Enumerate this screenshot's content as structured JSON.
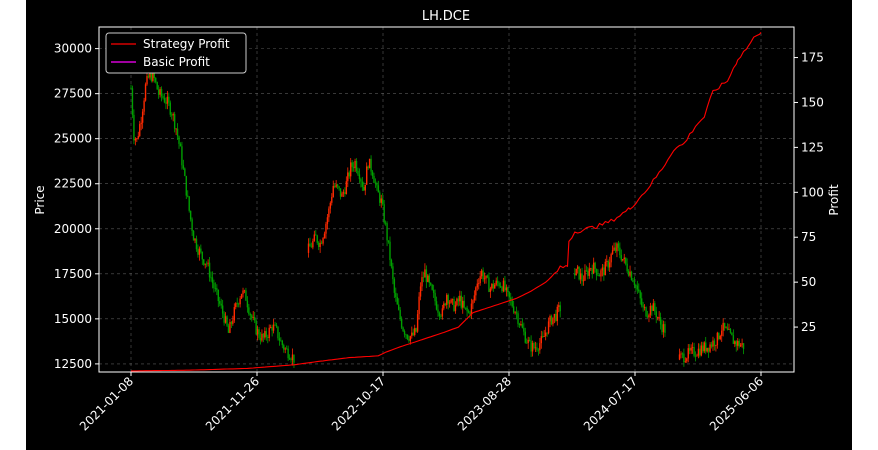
{
  "chart_data": {
    "type": "line",
    "title": "LH.DCE",
    "ylabel": "Price",
    "y2label": "Profit",
    "ylim": [
      12050,
      31200
    ],
    "y2lim": [
      0,
      192
    ],
    "yticks": [
      12500,
      15000,
      17500,
      20000,
      22500,
      25000,
      27500,
      30000
    ],
    "y2ticks": [
      25,
      50,
      75,
      100,
      125,
      150,
      175
    ],
    "xticks": [
      "2021-01-08",
      "2021-11-26",
      "2022-10-17",
      "2023-08-28",
      "2024-07-17",
      "2025-06-06"
    ],
    "grid": true,
    "legend_position": "top-left",
    "colors": {
      "background": "#000000",
      "text": "#ffffff",
      "candle_up": "#ff2a00",
      "candle_down": "#00a000",
      "strategy_profit": "#ff0000",
      "basic_profit": "#ff00ff",
      "grid": "#808080"
    },
    "legend": [
      {
        "label": "Strategy Profit",
        "color": "#ff0000"
      },
      {
        "label": "Basic Profit",
        "color": "#ff00ff"
      }
    ],
    "price_series": {
      "name": "Price",
      "points": [
        [
          0,
          27800
        ],
        [
          2,
          25200
        ],
        [
          4,
          24900
        ],
        [
          7,
          26200
        ],
        [
          10,
          27900
        ],
        [
          13,
          28600
        ],
        [
          16,
          28300
        ],
        [
          19,
          27500
        ],
        [
          22,
          27300
        ],
        [
          25,
          27000
        ],
        [
          28,
          26500
        ],
        [
          31,
          25600
        ],
        [
          34,
          24300
        ],
        [
          37,
          22700
        ],
        [
          40,
          21000
        ],
        [
          43,
          19600
        ],
        [
          46,
          18900
        ],
        [
          49,
          18400
        ],
        [
          52,
          18100
        ],
        [
          55,
          17300
        ],
        [
          58,
          16500
        ],
        [
          61,
          15800
        ],
        [
          64,
          15100
        ],
        [
          67,
          14200
        ],
        [
          70,
          15100
        ],
        [
          73,
          15900
        ],
        [
          76,
          16500
        ],
        [
          79,
          16200
        ],
        [
          82,
          15300
        ],
        [
          85,
          14600
        ],
        [
          88,
          14100
        ],
        [
          91,
          13900
        ],
        [
          94,
          14200
        ],
        [
          97,
          14600
        ],
        [
          100,
          14300
        ],
        [
          103,
          13700
        ],
        [
          106,
          13300
        ],
        [
          109,
          13100
        ],
        [
          112,
          12800
        ],
        [
          121,
          18700
        ],
        [
          124,
          19100
        ],
        [
          127,
          19500
        ],
        [
          130,
          19200
        ],
        [
          133,
          20000
        ],
        [
          136,
          21000
        ],
        [
          139,
          22400
        ],
        [
          142,
          22200
        ],
        [
          145,
          21800
        ],
        [
          148,
          22500
        ],
        [
          151,
          23400
        ],
        [
          154,
          23700
        ],
        [
          157,
          23100
        ],
        [
          160,
          22200
        ],
        [
          163,
          23700
        ],
        [
          166,
          23200
        ],
        [
          169,
          22100
        ],
        [
          172,
          21500
        ],
        [
          175,
          20100
        ],
        [
          178,
          18400
        ],
        [
          181,
          16400
        ],
        [
          184,
          15300
        ],
        [
          187,
          14500
        ],
        [
          190,
          14100
        ],
        [
          193,
          14000
        ],
        [
          196,
          14300
        ],
        [
          199,
          16900
        ],
        [
          202,
          17600
        ],
        [
          205,
          16800
        ],
        [
          208,
          16200
        ],
        [
          211,
          15600
        ],
        [
          214,
          15300
        ],
        [
          217,
          16400
        ],
        [
          220,
          15800
        ],
        [
          223,
          15700
        ],
        [
          226,
          16100
        ],
        [
          229,
          15500
        ],
        [
          232,
          15300
        ],
        [
          235,
          15900
        ],
        [
          238,
          17100
        ],
        [
          241,
          17600
        ],
        [
          244,
          17100
        ],
        [
          247,
          16700
        ],
        [
          250,
          16900
        ],
        [
          253,
          17000
        ],
        [
          256,
          16800
        ],
        [
          259,
          16200
        ],
        [
          262,
          15800
        ],
        [
          265,
          15300
        ],
        [
          268,
          14600
        ],
        [
          271,
          14000
        ],
        [
          274,
          13500
        ],
        [
          277,
          13400
        ],
        [
          280,
          13600
        ],
        [
          283,
          13800
        ],
        [
          286,
          14500
        ],
        [
          289,
          15000
        ],
        [
          292,
          15200
        ],
        [
          295,
          15600
        ],
        [
          304,
          17400
        ],
        [
          307,
          17600
        ],
        [
          310,
          17200
        ],
        [
          313,
          17500
        ],
        [
          316,
          17900
        ],
        [
          319,
          17800
        ],
        [
          322,
          17500
        ],
        [
          325,
          17700
        ],
        [
          328,
          18100
        ],
        [
          331,
          18700
        ],
        [
          334,
          18900
        ],
        [
          337,
          18500
        ],
        [
          340,
          18000
        ],
        [
          343,
          17600
        ],
        [
          346,
          17100
        ],
        [
          349,
          16300
        ],
        [
          352,
          15500
        ],
        [
          355,
          15400
        ],
        [
          358,
          15700
        ],
        [
          361,
          15300
        ],
        [
          364,
          14700
        ],
        [
          367,
          14400
        ],
        [
          376,
          12800
        ],
        [
          379,
          12900
        ],
        [
          382,
          13000
        ],
        [
          385,
          13100
        ],
        [
          388,
          13200
        ],
        [
          391,
          13300
        ],
        [
          394,
          13400
        ],
        [
          397,
          13500
        ],
        [
          400,
          13700
        ],
        [
          403,
          13900
        ],
        [
          406,
          14500
        ],
        [
          409,
          14300
        ],
        [
          412,
          14000
        ],
        [
          415,
          13700
        ],
        [
          418,
          13600
        ],
        [
          421,
          13500
        ]
      ]
    },
    "strategy_profit": {
      "name": "Strategy Profit",
      "points": [
        [
          0,
          0.6
        ],
        [
          40,
          1
        ],
        [
          80,
          2
        ],
        [
          112,
          4
        ],
        [
          130,
          6
        ],
        [
          150,
          8
        ],
        [
          170,
          9
        ],
        [
          175,
          11
        ],
        [
          185,
          14
        ],
        [
          200,
          18
        ],
        [
          215,
          22
        ],
        [
          225,
          25
        ],
        [
          235,
          33
        ],
        [
          250,
          37
        ],
        [
          265,
          41
        ],
        [
          275,
          45
        ],
        [
          287,
          51
        ],
        [
          295,
          58
        ],
        [
          300,
          59
        ],
        [
          301,
          73
        ],
        [
          305,
          78
        ],
        [
          320,
          81
        ],
        [
          330,
          84
        ],
        [
          343,
          91
        ],
        [
          355,
          102
        ],
        [
          365,
          113
        ],
        [
          373,
          124
        ],
        [
          380,
          127
        ],
        [
          388,
          137
        ],
        [
          394,
          142
        ],
        [
          400,
          156
        ],
        [
          410,
          162
        ],
        [
          417,
          174
        ],
        [
          424,
          181
        ],
        [
          430,
          188
        ],
        [
          433,
          189
        ]
      ]
    },
    "basic_profit": {
      "name": "Basic Profit",
      "points": [
        [
          0,
          0
        ],
        [
          433,
          0
        ]
      ]
    }
  }
}
